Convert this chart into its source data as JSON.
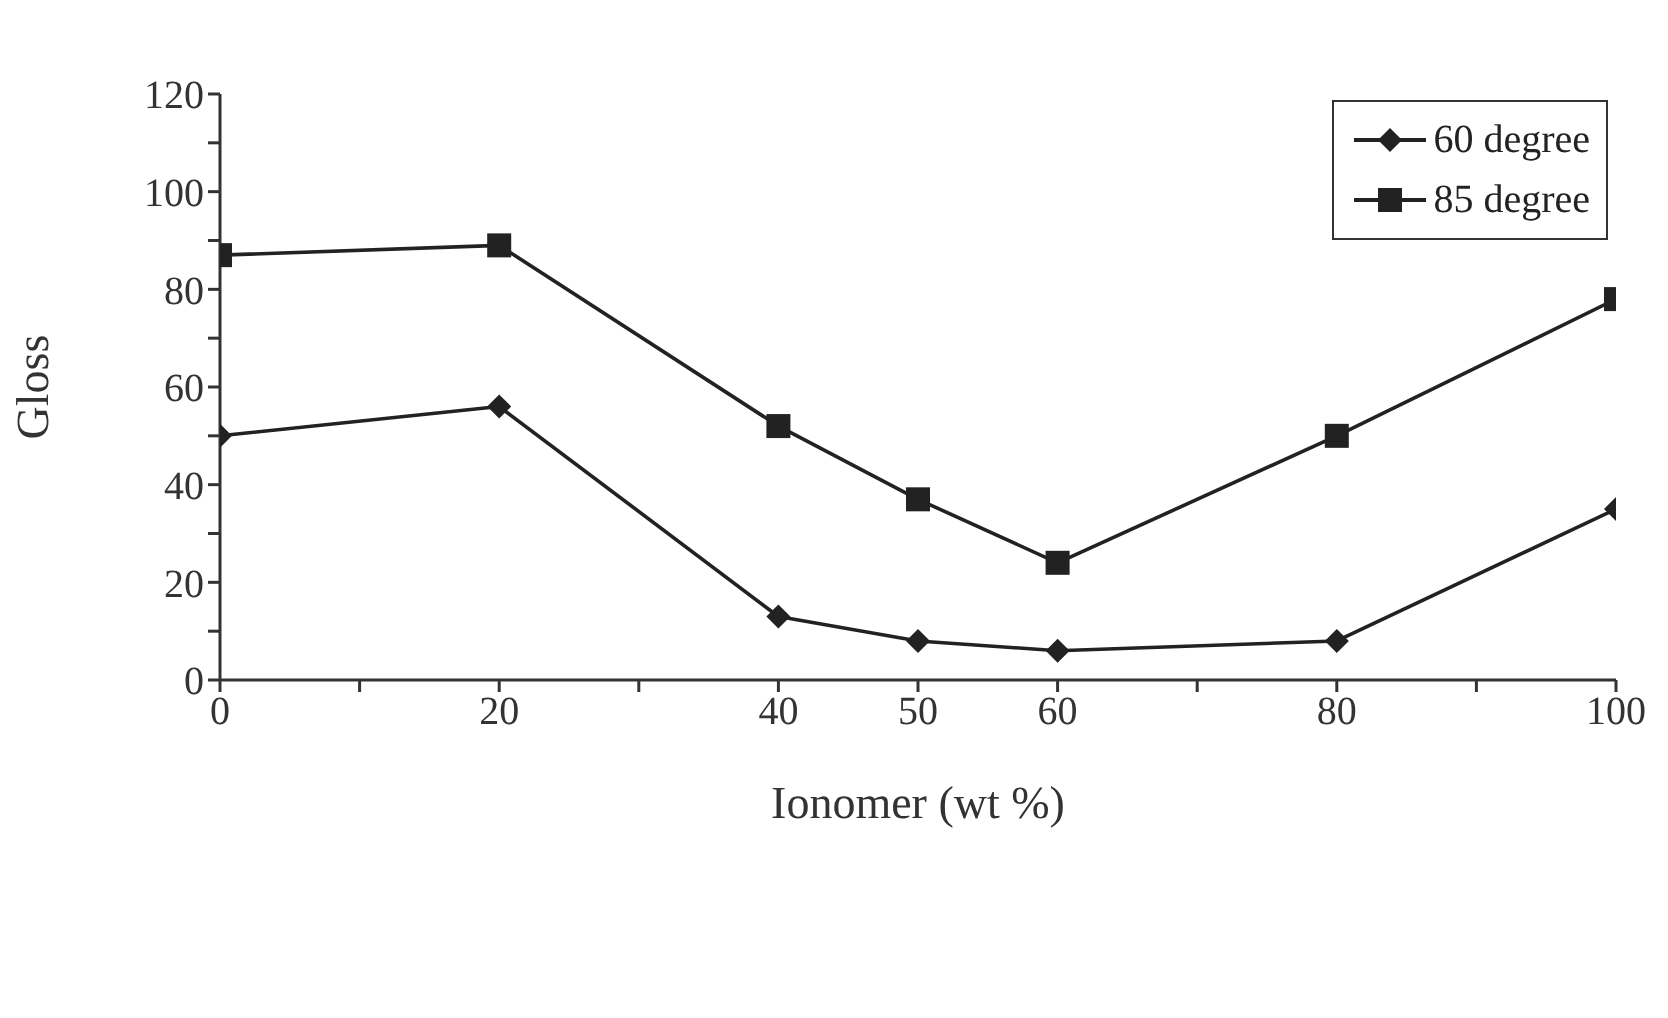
{
  "chart_data": {
    "type": "line",
    "xlabel": "Ionomer (wt %)",
    "ylabel": "Gloss",
    "x": [
      0,
      20,
      40,
      50,
      60,
      80,
      100
    ],
    "series": [
      {
        "name": "60 degree",
        "color": "#222222",
        "marker": "diamond",
        "values": [
          50,
          56,
          13,
          8,
          6,
          8,
          35
        ]
      },
      {
        "name": "85 degree",
        "color": "#222222",
        "marker": "square",
        "values": [
          87,
          89,
          52,
          37,
          24,
          50,
          78
        ]
      }
    ],
    "xlim": [
      0,
      100
    ],
    "xticks": [
      0,
      {
        "value": 10,
        "label": null
      },
      20,
      {
        "value": 30,
        "label": null
      },
      40,
      50,
      60,
      {
        "value": 70,
        "label": null
      },
      80,
      {
        "value": 90,
        "label": null
      },
      100
    ],
    "ylim": [
      0,
      120
    ],
    "yticks": [
      0,
      {
        "value": 10,
        "label": null
      },
      20,
      {
        "value": 30,
        "label": null
      },
      40,
      {
        "value": 50,
        "label": null
      },
      60,
      {
        "value": 70,
        "label": null
      },
      80,
      {
        "value": 90,
        "label": null
      },
      100,
      {
        "value": 110,
        "label": null
      },
      120
    ],
    "grid": false,
    "legend": "top right",
    "line_style": "solid"
  }
}
